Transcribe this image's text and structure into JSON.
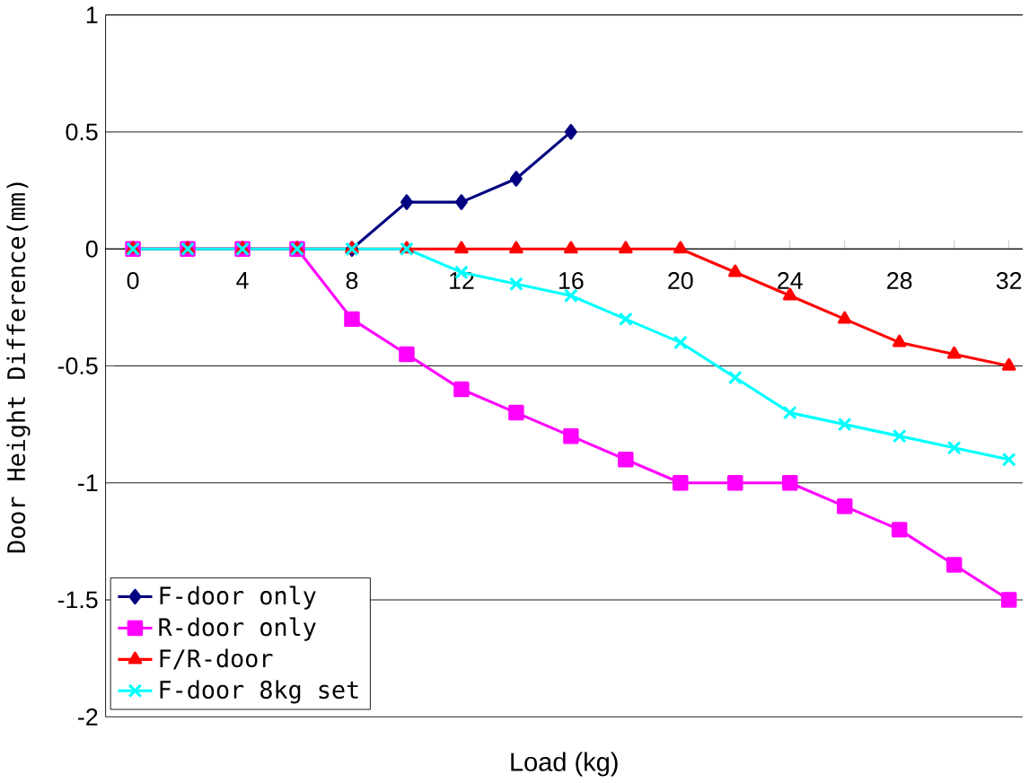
{
  "chart_data": {
    "type": "line",
    "xlabel": "Load (kg)",
    "ylabel": "Door Height Difference(mm)",
    "xlim": [
      -1,
      32.5
    ],
    "ylim": [
      -2,
      1
    ],
    "xticks": [
      0,
      {
        "value": 2,
        "label": null
      },
      4,
      {
        "value": 6,
        "label": null
      },
      8,
      {
        "value": 10,
        "label": null
      },
      12,
      {
        "value": 14,
        "label": null
      },
      16,
      {
        "value": 18,
        "label": null
      },
      20,
      {
        "value": 22,
        "label": null
      },
      24,
      {
        "value": 26,
        "label": null
      },
      28,
      {
        "value": 30,
        "label": null
      },
      32
    ],
    "yticks": [
      -2,
      -1.5,
      -1,
      -0.5,
      0,
      0.5,
      1
    ],
    "grid": "y",
    "legend": "bottom left",
    "series": [
      {
        "name": "F-door only",
        "color": "#000080",
        "marker": "diamond",
        "x": [
          0,
          2,
          4,
          6,
          8,
          10,
          12,
          14,
          16
        ],
        "values": [
          0,
          0,
          0,
          0,
          0,
          0.2,
          0.2,
          0.3,
          0.5
        ]
      },
      {
        "name": "R-door only",
        "color": "#ff00ff",
        "marker": "square",
        "x": [
          0,
          2,
          4,
          6,
          8,
          10,
          12,
          14,
          16,
          18,
          20,
          22,
          24,
          26,
          28,
          30,
          32
        ],
        "values": [
          0,
          0,
          0,
          0,
          -0.3,
          -0.45,
          -0.6,
          -0.7,
          -0.8,
          -0.9,
          -1,
          -1,
          -1,
          -1.1,
          -1.2,
          -1.35,
          -1.5
        ]
      },
      {
        "name": "F/R-door",
        "color": "#ff0000",
        "marker": "triangle",
        "x": [
          0,
          2,
          4,
          6,
          8,
          10,
          12,
          14,
          16,
          18,
          20,
          22,
          24,
          26,
          28,
          30,
          32
        ],
        "values": [
          0,
          0,
          0,
          0,
          0,
          0,
          0,
          0,
          0,
          0,
          0,
          -0.1,
          -0.2,
          -0.3,
          -0.4,
          -0.45,
          -0.5
        ]
      },
      {
        "name": "F-door 8kg set",
        "color": "#00ffff",
        "marker": "cross",
        "x": [
          0,
          2,
          4,
          6,
          8,
          10,
          12,
          14,
          16,
          18,
          20,
          22,
          24,
          26,
          28,
          30,
          32
        ],
        "values": [
          0,
          0,
          0,
          0,
          0,
          0,
          -0.1,
          -0.15,
          -0.2,
          -0.3,
          -0.4,
          -0.55,
          -0.7,
          -0.75,
          -0.8,
          -0.85,
          -0.9
        ]
      }
    ]
  }
}
